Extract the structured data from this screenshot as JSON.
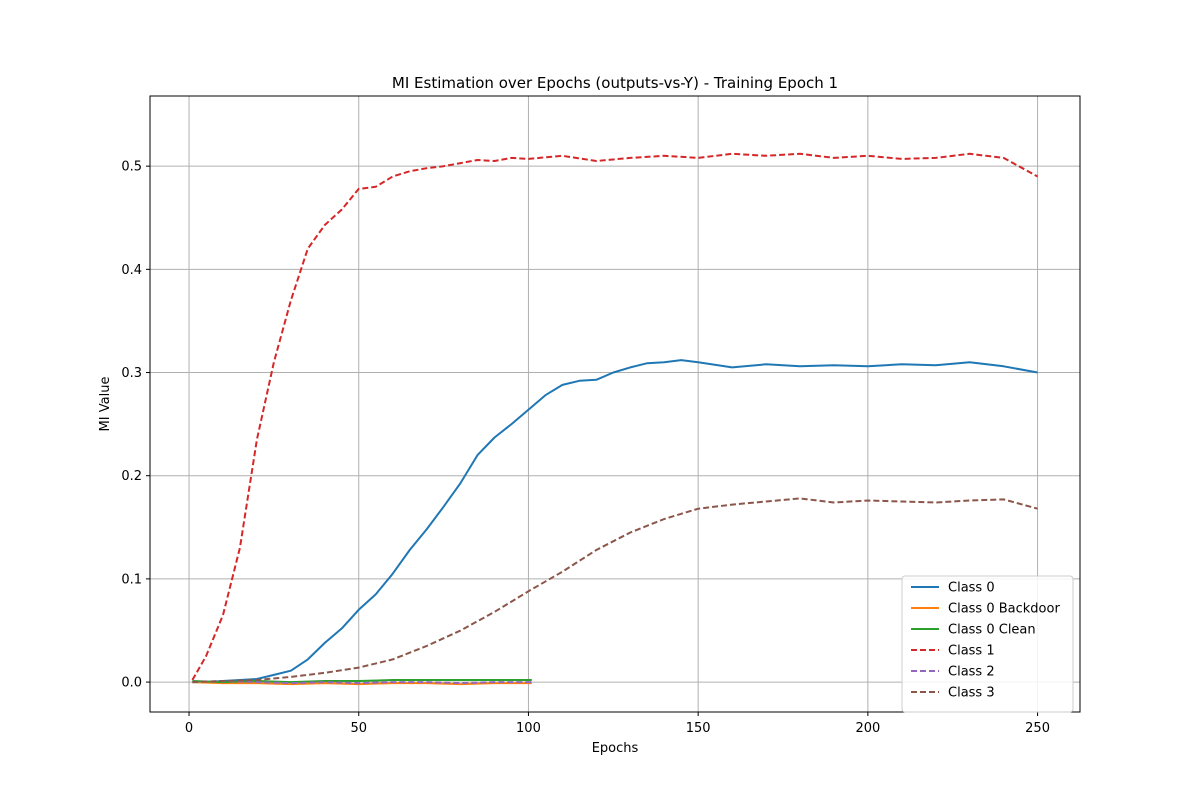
{
  "chart_data": {
    "type": "line",
    "title": "MI Estimation over Epochs (outputs-vs-Y) - Training Epoch 1",
    "xlabel": "Epochs",
    "ylabel": "MI Value",
    "xlim": [
      -11.5,
      262.5
    ],
    "ylim": [
      -0.029,
      0.568
    ],
    "x_ticks": [
      0,
      50,
      100,
      150,
      200,
      250
    ],
    "y_ticks": [
      0.0,
      0.1,
      0.2,
      0.3,
      0.4,
      0.5
    ],
    "x_tick_labels": [
      "0",
      "50",
      "100",
      "150",
      "200",
      "250"
    ],
    "y_tick_labels": [
      "0.0",
      "0.1",
      "0.2",
      "0.3",
      "0.4",
      "0.5"
    ],
    "grid": true,
    "legend_position": "lower-right",
    "series": [
      {
        "name": "Class 0",
        "color": "#1f77b4",
        "style": "solid",
        "points": [
          [
            1,
            0.0
          ],
          [
            5,
            0.0
          ],
          [
            10,
            0.001
          ],
          [
            15,
            0.002
          ],
          [
            20,
            0.003
          ],
          [
            25,
            0.007
          ],
          [
            30,
            0.011
          ],
          [
            35,
            0.022
          ],
          [
            40,
            0.038
          ],
          [
            45,
            0.052
          ],
          [
            50,
            0.07
          ],
          [
            55,
            0.085
          ],
          [
            60,
            0.105
          ],
          [
            65,
            0.128
          ],
          [
            70,
            0.148
          ],
          [
            75,
            0.17
          ],
          [
            80,
            0.193
          ],
          [
            85,
            0.22
          ],
          [
            90,
            0.237
          ],
          [
            95,
            0.25
          ],
          [
            100,
            0.264
          ],
          [
            105,
            0.278
          ],
          [
            110,
            0.288
          ],
          [
            115,
            0.292
          ],
          [
            120,
            0.293
          ],
          [
            125,
            0.3
          ],
          [
            130,
            0.305
          ],
          [
            135,
            0.309
          ],
          [
            140,
            0.31
          ],
          [
            145,
            0.312
          ],
          [
            150,
            0.31
          ],
          [
            160,
            0.305
          ],
          [
            170,
            0.308
          ],
          [
            180,
            0.306
          ],
          [
            190,
            0.307
          ],
          [
            200,
            0.306
          ],
          [
            210,
            0.308
          ],
          [
            220,
            0.307
          ],
          [
            230,
            0.31
          ],
          [
            240,
            0.306
          ],
          [
            250,
            0.3
          ]
        ]
      },
      {
        "name": "Class 0 Backdoor",
        "color": "#ff7f0e",
        "style": "solid",
        "points": [
          [
            1,
            0.0
          ],
          [
            10,
            -0.001
          ],
          [
            20,
            -0.001
          ],
          [
            30,
            -0.002
          ],
          [
            40,
            -0.001
          ],
          [
            50,
            -0.002
          ],
          [
            60,
            -0.001
          ],
          [
            70,
            -0.001
          ],
          [
            80,
            -0.002
          ],
          [
            90,
            -0.001
          ],
          [
            101,
            -0.001
          ]
        ]
      },
      {
        "name": "Class 0 Clean",
        "color": "#2ca02c",
        "style": "solid",
        "points": [
          [
            1,
            0.001
          ],
          [
            10,
            0.0
          ],
          [
            20,
            0.001
          ],
          [
            30,
            0.0
          ],
          [
            40,
            0.001
          ],
          [
            50,
            0.001
          ],
          [
            60,
            0.002
          ],
          [
            70,
            0.002
          ],
          [
            80,
            0.002
          ],
          [
            90,
            0.002
          ],
          [
            101,
            0.002
          ]
        ]
      },
      {
        "name": "Class 1",
        "color": "#d62728",
        "style": "dashed",
        "points": [
          [
            1,
            0.002
          ],
          [
            5,
            0.025
          ],
          [
            10,
            0.065
          ],
          [
            15,
            0.13
          ],
          [
            20,
            0.235
          ],
          [
            25,
            0.31
          ],
          [
            30,
            0.37
          ],
          [
            35,
            0.42
          ],
          [
            40,
            0.443
          ],
          [
            45,
            0.458
          ],
          [
            50,
            0.478
          ],
          [
            55,
            0.48
          ],
          [
            60,
            0.49
          ],
          [
            65,
            0.495
          ],
          [
            70,
            0.498
          ],
          [
            75,
            0.5
          ],
          [
            80,
            0.503
          ],
          [
            85,
            0.506
          ],
          [
            90,
            0.505
          ],
          [
            95,
            0.508
          ],
          [
            100,
            0.507
          ],
          [
            110,
            0.51
          ],
          [
            120,
            0.505
          ],
          [
            130,
            0.508
          ],
          [
            140,
            0.51
          ],
          [
            150,
            0.508
          ],
          [
            160,
            0.512
          ],
          [
            170,
            0.51
          ],
          [
            180,
            0.512
          ],
          [
            190,
            0.508
          ],
          [
            200,
            0.51
          ],
          [
            210,
            0.507
          ],
          [
            220,
            0.508
          ],
          [
            230,
            0.512
          ],
          [
            240,
            0.508
          ],
          [
            250,
            0.49
          ]
        ]
      },
      {
        "name": "Class 2",
        "color": "#9467bd",
        "style": "dashed",
        "points": [
          [
            1,
            0.0
          ],
          [
            10,
            0.001
          ],
          [
            20,
            0.0
          ],
          [
            30,
            -0.001
          ],
          [
            40,
            0.0
          ],
          [
            50,
            -0.001
          ],
          [
            60,
            0.0
          ],
          [
            70,
            0.0
          ],
          [
            80,
            -0.001
          ],
          [
            90,
            0.0
          ],
          [
            101,
            0.0
          ]
        ]
      },
      {
        "name": "Class 3",
        "color": "#8c564b",
        "style": "dashed",
        "points": [
          [
            1,
            0.0
          ],
          [
            10,
            0.001
          ],
          [
            20,
            0.002
          ],
          [
            30,
            0.005
          ],
          [
            40,
            0.009
          ],
          [
            50,
            0.014
          ],
          [
            60,
            0.022
          ],
          [
            70,
            0.035
          ],
          [
            80,
            0.05
          ],
          [
            90,
            0.068
          ],
          [
            100,
            0.088
          ],
          [
            110,
            0.107
          ],
          [
            120,
            0.128
          ],
          [
            130,
            0.145
          ],
          [
            140,
            0.158
          ],
          [
            150,
            0.168
          ],
          [
            160,
            0.172
          ],
          [
            170,
            0.175
          ],
          [
            180,
            0.178
          ],
          [
            190,
            0.174
          ],
          [
            200,
            0.176
          ],
          [
            210,
            0.175
          ],
          [
            220,
            0.174
          ],
          [
            230,
            0.176
          ],
          [
            240,
            0.177
          ],
          [
            250,
            0.168
          ]
        ]
      }
    ]
  }
}
